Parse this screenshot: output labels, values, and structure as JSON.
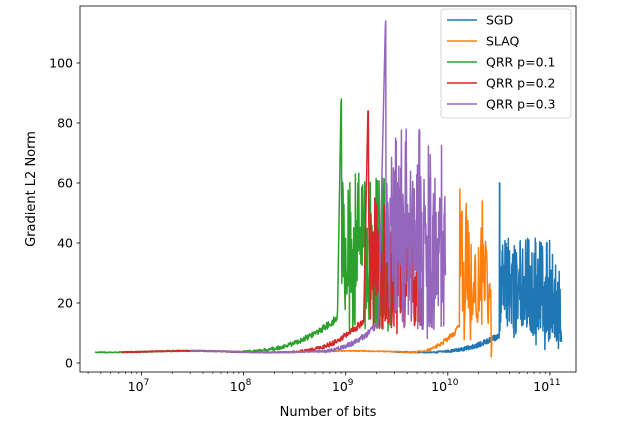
{
  "chart_data": {
    "type": "line",
    "xscale": "log",
    "xlabel": "Number of bits",
    "ylabel": "Gradient L2 Norm",
    "xlim": [
      2500000,
      180000000000
    ],
    "ylim": [
      -3,
      119
    ],
    "x_major_ticks": [
      {
        "value": 10000000,
        "base": "10",
        "exp": "7"
      },
      {
        "value": 100000000,
        "base": "10",
        "exp": "8"
      },
      {
        "value": 1000000000,
        "base": "10",
        "exp": "9"
      },
      {
        "value": 10000000000,
        "base": "10",
        "exp": "10"
      },
      {
        "value": 100000000000,
        "base": "10",
        "exp": "11"
      }
    ],
    "y_ticks": [
      0,
      20,
      40,
      60,
      80,
      100
    ],
    "legend_position": "top-right",
    "series": [
      {
        "name": "SGD",
        "color": "#1f77b4",
        "x": [],
        "y": [],
        "profile": {
          "x_start": 3000000000,
          "x_end": 130000000000,
          "flat": 3.8,
          "turn_x": 8000000000,
          "rise_to": 9,
          "peak_x": 32000000000,
          "peak_value": 60,
          "oscillation": [
            8,
            42
          ]
        }
      },
      {
        "name": "SLAQ",
        "color": "#ff7f0e",
        "x": [],
        "y": [],
        "profile": {
          "x_start": 6000000,
          "x_end": 27000000000,
          "flat": 3.8,
          "turn_x": 5000000000,
          "peak_x": 13000000000,
          "peak_value": 58,
          "oscillation": [
            5,
            55
          ]
        }
      },
      {
        "name": "QRR p=0.1",
        "color": "#2ca02c",
        "x": [],
        "y": [],
        "profile": {
          "x_start": 3500000,
          "x_end": 2800000000,
          "flat": 3.8,
          "turn_x": 100000000,
          "pre_spike_x": 830000000,
          "pre_spike_value": 15,
          "peak_x": 900000000,
          "peak_value": 88,
          "oscillation": [
            10,
            64
          ]
        }
      },
      {
        "name": "QRR p=0.2",
        "color": "#d62728",
        "x": [],
        "y": [],
        "profile": {
          "x_start": 6500000,
          "x_end": 5500000000,
          "flat": 3.8,
          "turn_x": 300000000,
          "pre_spike_x": 1500000000,
          "pre_spike_value": 14,
          "peak_x": 1650000000,
          "peak_value": 84,
          "oscillation": [
            11,
            58
          ]
        }
      },
      {
        "name": "QRR p=0.3",
        "color": "#9467bd",
        "x": [],
        "y": [],
        "profile": {
          "x_start": 30000000,
          "x_end": 9500000000,
          "flat": 3.8,
          "turn_x": 500000000,
          "pre_spike_x": 2100000000,
          "pre_spike_value": 13,
          "peak_x": 2450000000,
          "peak_value": 114,
          "oscillation": [
            11,
            78
          ]
        }
      }
    ]
  }
}
